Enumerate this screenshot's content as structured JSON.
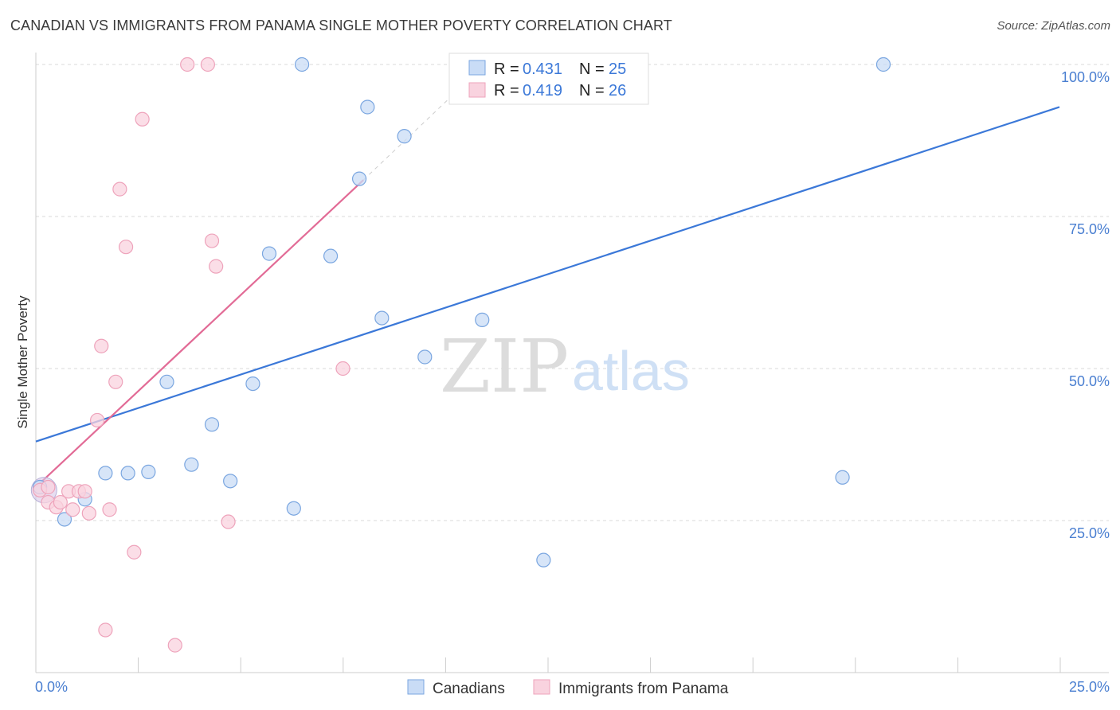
{
  "title": "CANADIAN VS IMMIGRANTS FROM PANAMA SINGLE MOTHER POVERTY CORRELATION CHART",
  "source": "Source: ZipAtlas.com",
  "watermark": {
    "zip": "ZIP",
    "atlas": "atlas"
  },
  "legend_top": [
    {
      "r_label": "R = ",
      "r_value": "0.431",
      "n_label": "N = ",
      "n_value": "25",
      "color": "#a9c8f2"
    },
    {
      "r_label": "R = ",
      "r_value": "0.419",
      "n_label": "N = ",
      "n_value": "26",
      "color": "#f5b8cb"
    }
  ],
  "legend_bottom": [
    {
      "label": "Canadians",
      "color": "#a9c8f2"
    },
    {
      "label": "Immigrants from Panama",
      "color": "#f5b8cb"
    }
  ],
  "chart_data": {
    "type": "scatter",
    "title": "CANADIAN VS IMMIGRANTS FROM PANAMA SINGLE MOTHER POVERTY CORRELATION CHART",
    "xlabel": "",
    "ylabel": "Single Mother Poverty",
    "xlim": [
      0,
      25
    ],
    "ylim": [
      0,
      100
    ],
    "x_tick_labels": [
      "0.0%",
      "25.0%"
    ],
    "y_ticks": [
      25,
      50,
      75,
      100
    ],
    "y_tick_labels": [
      "25.0%",
      "50.0%",
      "75.0%",
      "100.0%"
    ],
    "grid": true,
    "series": [
      {
        "name": "Canadians",
        "color": "#3b78d8",
        "fill": "#c9dcf6",
        "stroke": "#7aa6e0",
        "points": [
          [
            0.1,
            30.5
          ],
          [
            0.7,
            25.2
          ],
          [
            1.2,
            28.5
          ],
          [
            1.7,
            32.8
          ],
          [
            2.25,
            32.8
          ],
          [
            2.75,
            33.0
          ],
          [
            3.2,
            47.8
          ],
          [
            3.8,
            34.2
          ],
          [
            4.3,
            40.8
          ],
          [
            4.75,
            31.5
          ],
          [
            5.3,
            47.5
          ],
          [
            5.7,
            68.9
          ],
          [
            6.3,
            27.0
          ],
          [
            6.5,
            100.0
          ],
          [
            7.2,
            68.5
          ],
          [
            7.9,
            81.2
          ],
          [
            8.1,
            93.0
          ],
          [
            8.45,
            58.3
          ],
          [
            9.0,
            88.2
          ],
          [
            9.5,
            51.9
          ],
          [
            10.4,
            100.0
          ],
          [
            10.9,
            58.0
          ],
          [
            12.4,
            18.5
          ],
          [
            19.7,
            32.1
          ],
          [
            20.7,
            100.0
          ]
        ],
        "trend": {
          "x": [
            0,
            25
          ],
          "y": [
            38.0,
            93.0
          ]
        }
      },
      {
        "name": "Immigrants from Panama",
        "color": "#e26b96",
        "fill": "#f9d3df",
        "stroke": "#eea3bb",
        "points": [
          [
            0.1,
            30.0
          ],
          [
            0.3,
            28.0
          ],
          [
            0.5,
            27.2
          ],
          [
            0.8,
            29.8
          ],
          [
            0.9,
            26.8
          ],
          [
            1.05,
            29.8
          ],
          [
            1.2,
            29.8
          ],
          [
            1.3,
            26.2
          ],
          [
            1.5,
            41.5
          ],
          [
            1.6,
            53.7
          ],
          [
            1.7,
            7.0
          ],
          [
            1.8,
            26.8
          ],
          [
            1.95,
            47.8
          ],
          [
            2.05,
            79.5
          ],
          [
            2.2,
            70.0
          ],
          [
            2.4,
            19.8
          ],
          [
            2.6,
            91.0
          ],
          [
            3.4,
            4.5
          ],
          [
            3.7,
            100.0
          ],
          [
            4.2,
            100.0
          ],
          [
            4.3,
            71.0
          ],
          [
            4.4,
            66.8
          ],
          [
            4.7,
            24.8
          ],
          [
            7.5,
            50.0
          ],
          [
            0.3,
            30.5
          ],
          [
            0.6,
            28.0
          ]
        ],
        "trend": {
          "x": [
            0,
            8.0
          ],
          "y": [
            30.5,
            81.0
          ]
        },
        "trend_extension": {
          "x": [
            8.0,
            10.5
          ],
          "y": [
            81.0,
            97.0
          ]
        }
      }
    ]
  }
}
